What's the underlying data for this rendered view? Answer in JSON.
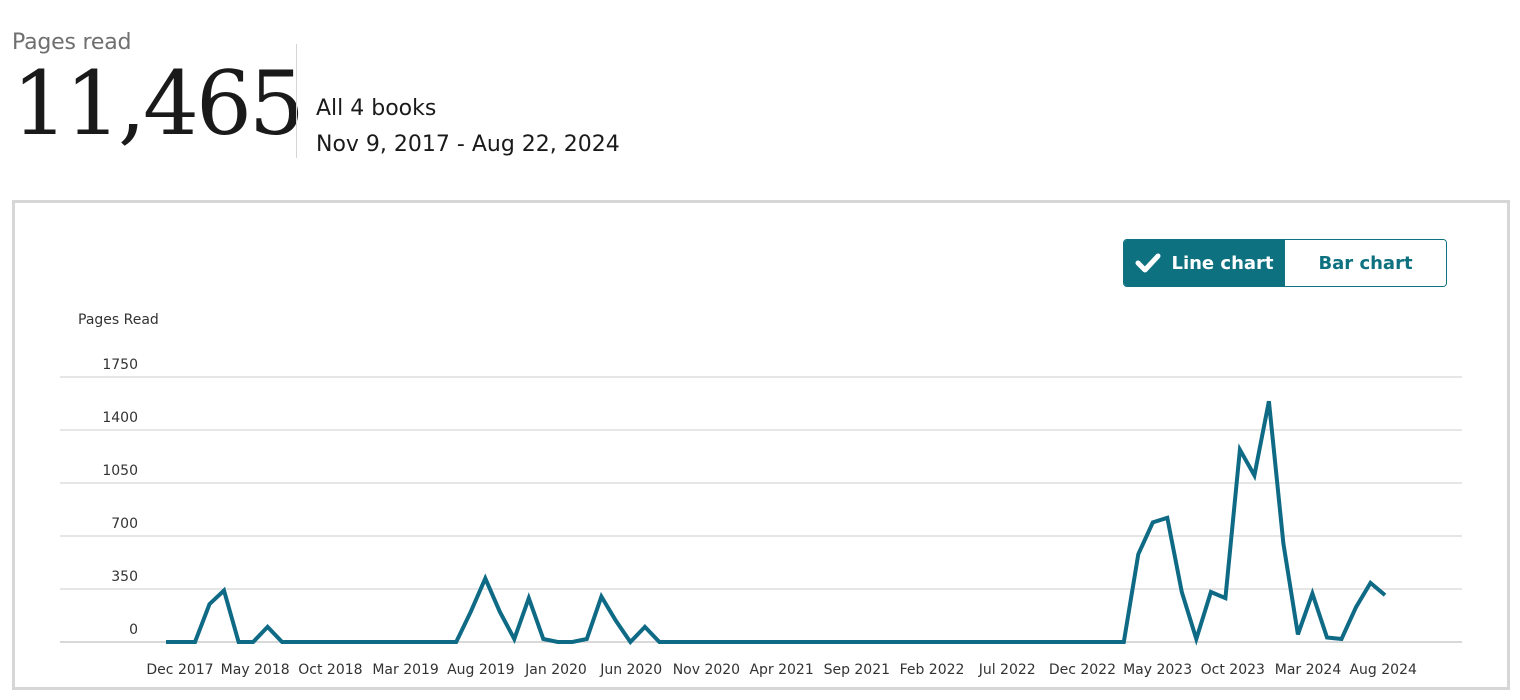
{
  "summary": {
    "label": "Pages read",
    "total": "11,465",
    "books": "All 4 books",
    "date_range": "Nov 9, 2017 - Aug 22, 2024"
  },
  "toggle": {
    "line_label": "Line chart",
    "bar_label": "Bar chart",
    "selected": "line"
  },
  "colors": {
    "accent": "#0e7180",
    "line": "#0e6a85",
    "grid": "#cccccc"
  },
  "chart_data": {
    "type": "line",
    "ylabel": "Pages Read",
    "xlabel": "",
    "ylim": [
      0,
      1750
    ],
    "yticks": [
      0,
      350,
      700,
      1050,
      1400,
      1750
    ],
    "xtick_labels": [
      "Dec 2017",
      "May 2018",
      "Oct 2018",
      "Mar 2019",
      "Aug 2019",
      "Jan 2020",
      "Jun 2020",
      "Nov 2020",
      "Apr 2021",
      "Sep 2021",
      "Feb 2022",
      "Jul 2022",
      "Dec 2022",
      "May 2023",
      "Oct 2023",
      "Mar 2024",
      "Aug 2024"
    ],
    "grid": true,
    "series": [
      {
        "values": [
          0,
          0,
          0,
          250,
          340,
          0,
          0,
          100,
          0,
          0,
          0,
          0,
          0,
          0,
          0,
          0,
          0,
          0,
          0,
          0,
          0,
          200,
          420,
          200,
          20,
          290,
          20,
          0,
          0,
          20,
          300,
          140,
          0,
          100,
          0,
          0,
          0,
          0,
          0,
          0,
          0,
          0,
          0,
          0,
          0,
          0,
          0,
          0,
          0,
          0,
          0,
          0,
          0,
          0,
          0,
          0,
          0,
          0,
          0,
          0,
          0,
          0,
          0,
          0,
          0,
          0,
          0,
          580,
          790,
          820,
          330,
          20,
          330,
          290,
          1270,
          1100,
          1590,
          650,
          50,
          320,
          30,
          20,
          230,
          390,
          310
        ]
      }
    ]
  }
}
